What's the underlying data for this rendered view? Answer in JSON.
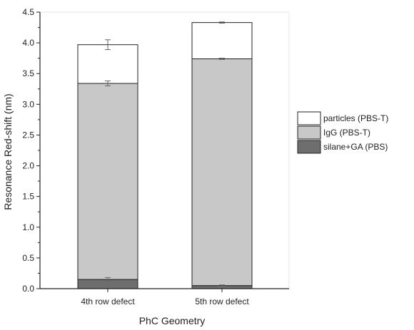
{
  "chart_data": {
    "type": "bar",
    "stacked": true,
    "title": "",
    "xlabel": "PhC Geometry",
    "ylabel": "Resonance Red-shift (nm)",
    "categories": [
      "4th row defect",
      "5th row defect"
    ],
    "ylim": [
      0,
      4.5
    ],
    "yticks": [
      "0.0",
      "0.5",
      "1.0",
      "1.5",
      "2.0",
      "2.5",
      "3.0",
      "3.5",
      "4.0",
      "4.5"
    ],
    "grid": false,
    "legend_position": "right",
    "series": [
      {
        "name": "silane+GA (PBS)",
        "color": "#6e6e6e",
        "values": [
          0.15,
          0.05
        ],
        "errors": [
          0.03,
          0.01
        ]
      },
      {
        "name": "IgG (PBS-T)",
        "color": "#c8c8c8",
        "values": [
          3.19,
          3.69
        ],
        "errors": [
          0.04,
          0.01
        ]
      },
      {
        "name": "particles (PBS-T)",
        "color": "#ffffff",
        "values": [
          0.63,
          0.59
        ],
        "errors": [
          0.08,
          0.01
        ]
      }
    ],
    "legend_order": [
      "particles (PBS-T)",
      "IgG (PBS-T)",
      "silane+GA (PBS)"
    ]
  }
}
